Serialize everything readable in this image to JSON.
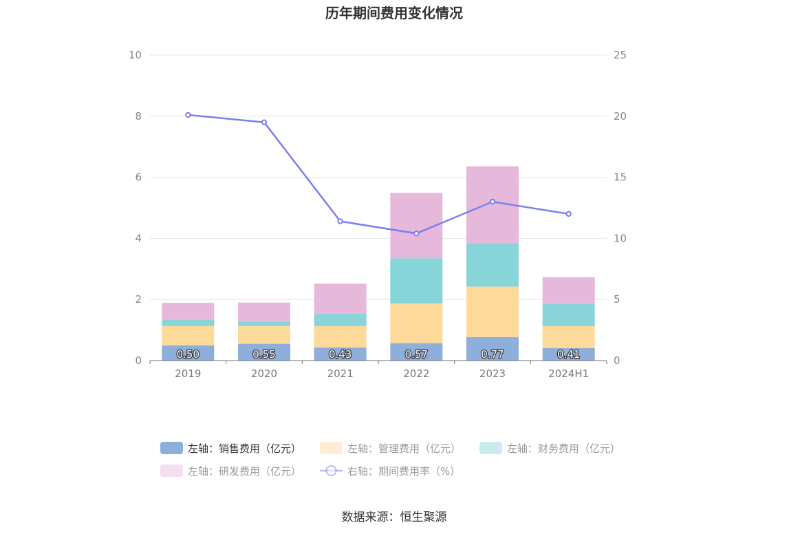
{
  "chart_data": {
    "type": "bar",
    "title": "历年期间费用变化情况",
    "categories": [
      "2019",
      "2020",
      "2021",
      "2022",
      "2023",
      "2024H1"
    ],
    "stacked": true,
    "series": [
      {
        "name": "左轴：销售费用（亿元）",
        "axis": "left",
        "type": "bar",
        "color": "#8eaedb",
        "values": [
          0.5,
          0.55,
          0.43,
          0.57,
          0.77,
          0.41
        ],
        "show_labels": true
      },
      {
        "name": "左轴：管理费用（亿元）",
        "axis": "left",
        "type": "bar",
        "color": "#fdd99a",
        "values": [
          0.63,
          0.58,
          0.7,
          1.3,
          1.65,
          0.72
        ]
      },
      {
        "name": "左轴：财务费用（亿元）",
        "axis": "left",
        "type": "bar",
        "color": "#88d5d9",
        "values": [
          0.2,
          0.15,
          0.4,
          1.48,
          1.42,
          0.72
        ]
      },
      {
        "name": "左轴：研发费用（亿元）",
        "axis": "left",
        "type": "bar",
        "color": "#e6b9da",
        "values": [
          0.56,
          0.62,
          0.99,
          2.14,
          2.52,
          0.88
        ]
      },
      {
        "name": "右轴：期间费用率（%）",
        "axis": "right",
        "type": "line",
        "color": "#7b7ff0",
        "values": [
          20.1,
          19.5,
          11.4,
          10.4,
          13.0,
          12.0
        ]
      }
    ],
    "left_axis": {
      "min": 0,
      "max": 10,
      "ticks": [
        0,
        2,
        4,
        6,
        8,
        10
      ]
    },
    "right_axis": {
      "min": 0,
      "max": 25,
      "ticks": [
        0,
        5,
        10,
        15,
        20,
        25
      ]
    },
    "legend": {
      "position": "bottom",
      "inactive": [
        "左轴：管理费用（亿元）",
        "左轴：财务费用（亿元）",
        "左轴：研发费用（亿元）",
        "右轴：期间费用率（%）"
      ]
    },
    "grid": true
  },
  "source": "数据来源：恒生聚源"
}
